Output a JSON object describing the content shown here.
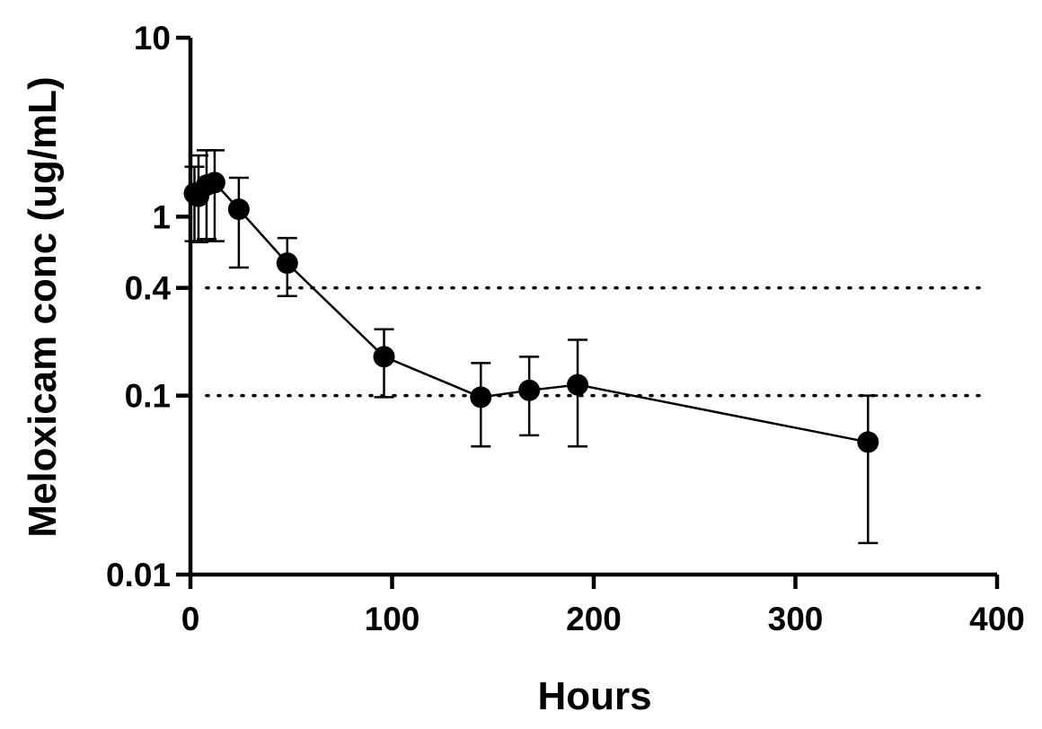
{
  "chart_data": {
    "type": "scatter",
    "title": "",
    "xlabel": "Hours",
    "ylabel": "Meloxicam conc (ug/mL)",
    "xlim": [
      0,
      400
    ],
    "ylim": [
      0.01,
      10
    ],
    "yscale": "log",
    "x_ticks": [
      0,
      100,
      200,
      300,
      400
    ],
    "x_tick_labels": [
      "0",
      "100",
      "200",
      "300",
      "400"
    ],
    "y_ticks": [
      0.01,
      0.1,
      0.4,
      1,
      10
    ],
    "y_tick_labels": [
      "0.01",
      "0.1",
      "0.4",
      "1",
      "10"
    ],
    "reference_lines": [
      {
        "y": 0.4,
        "style": "dotted"
      },
      {
        "y": 0.1,
        "style": "dotted"
      }
    ],
    "series": [
      {
        "name": "Meloxicam",
        "x": [
          2,
          4,
          8,
          12,
          24,
          48,
          96,
          144,
          168,
          192,
          336
        ],
        "y": [
          1.35,
          1.3,
          1.5,
          1.55,
          1.1,
          0.55,
          0.165,
          0.098,
          0.107,
          0.115,
          0.055
        ],
        "err_low": [
          0.73,
          0.72,
          0.75,
          0.73,
          0.52,
          0.36,
          0.098,
          0.052,
          0.06,
          0.052,
          0.015
        ],
        "err_high": [
          1.9,
          2.2,
          2.35,
          2.35,
          1.65,
          0.76,
          0.235,
          0.152,
          0.165,
          0.205,
          0.1
        ]
      }
    ]
  }
}
